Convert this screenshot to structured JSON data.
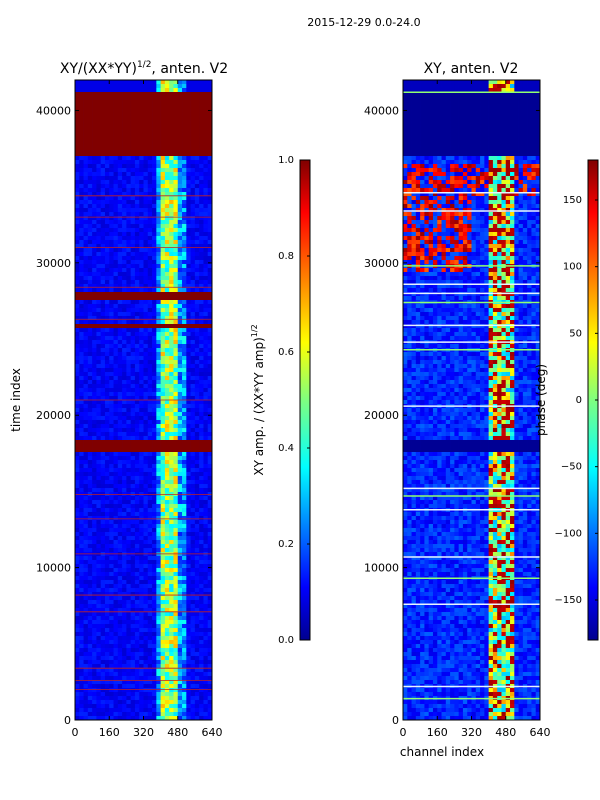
{
  "suptitle": "2015-12-29 0.0-24.0",
  "colors": {
    "dark_red": "#800000",
    "dark_blue": "#000a8c",
    "blue": "#1a2cf0",
    "stripe_white": "#e8f4ff",
    "stripe_green": "#90ff70"
  },
  "chart_data": [
    {
      "type": "heatmap",
      "title_prefix": "XY/(XX*YY)",
      "title_exp": "1/2",
      "title_suffix": ", anten. V2",
      "xlabel": "",
      "ylabel": "time index",
      "xlim": [
        0,
        640
      ],
      "ylim": [
        0,
        42000
      ],
      "xticks": [
        "0",
        "160",
        "320",
        "480",
        "640"
      ],
      "yticks": [
        "0",
        "10000",
        "20000",
        "30000",
        "40000"
      ],
      "colorbar": {
        "label_base": "XY amp. / (XX*YY amp)",
        "label_exp": "1/2",
        "min": 0.0,
        "max": 1.0,
        "ticks": [
          "0.0",
          "0.2",
          "0.4",
          "0.6",
          "0.8",
          "1.0"
        ]
      },
      "saturated_time_ranges": [
        [
          37100,
          41200
        ],
        [
          27600,
          28000
        ],
        [
          25600,
          25900
        ],
        [
          17600,
          18300
        ]
      ],
      "bright_channel_range": [
        400,
        480
      ]
    },
    {
      "type": "heatmap",
      "title": "XY, anten. V2",
      "xlabel": "channel index",
      "ylabel": "",
      "xlim": [
        0,
        640
      ],
      "ylim": [
        0,
        42000
      ],
      "xticks": [
        "0",
        "160",
        "320",
        "480",
        "640"
      ],
      "yticks": [
        "0",
        "10000",
        "20000",
        "30000",
        "40000"
      ],
      "colorbar": {
        "label": "phase (deg)",
        "min": -180,
        "max": 180,
        "ticks": [
          "−150",
          "−100",
          "−50",
          "0",
          "50",
          "100",
          "150"
        ]
      },
      "masked_time_ranges": [
        [
          37100,
          41200
        ],
        [
          17600,
          18300
        ]
      ],
      "bright_channel_range": [
        400,
        510
      ]
    }
  ]
}
